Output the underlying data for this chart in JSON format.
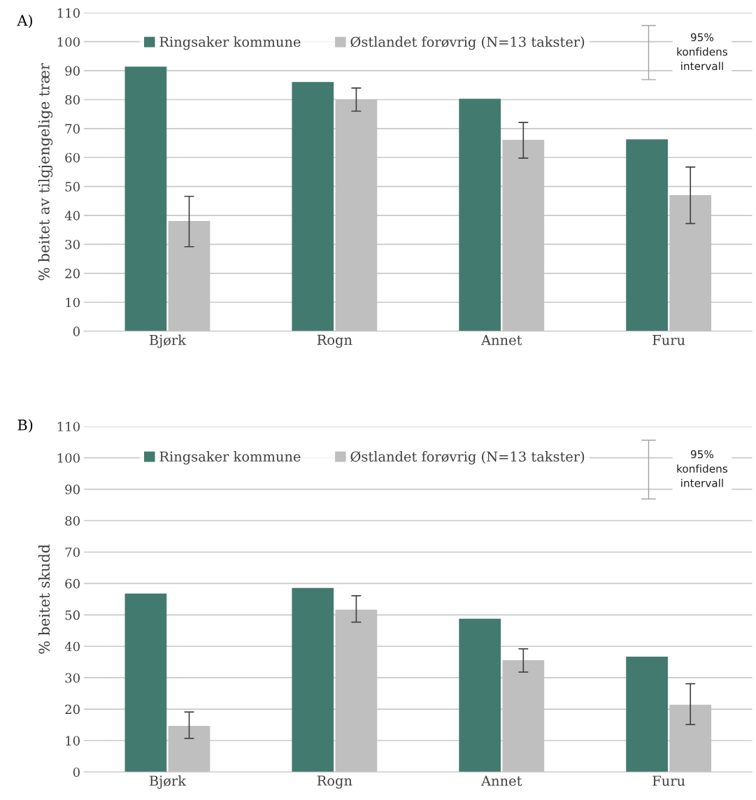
{
  "chart_data": [
    {
      "type": "bar",
      "title": "A)",
      "ylabel": "% beitet av tilgjengelige trær",
      "categories": [
        "Bjørk",
        "Rogn",
        "Annet",
        "Furu"
      ],
      "ylim": [
        0,
        110
      ],
      "yticks": [
        0,
        10,
        20,
        30,
        40,
        50,
        60,
        70,
        80,
        90,
        100,
        110
      ],
      "grid": "y",
      "legend": "top",
      "annotations": [
        "95%\nkonfidens\nintervall"
      ],
      "series": [
        {
          "name": "Ringsaker kommune",
          "color": "#437a6f",
          "values": [
            91.4,
            86.1,
            80.3,
            66.3
          ]
        },
        {
          "name": "Østlandet forøvrig (N=13 takster)",
          "color": "#bfbfbf",
          "values": [
            38.1,
            80.1,
            66.1,
            47.0
          ],
          "errors": [
            [
              29.2,
              46.6
            ],
            [
              76.0,
              84.0
            ],
            [
              59.8,
              72.1
            ],
            [
              37.2,
              56.7
            ]
          ]
        }
      ]
    },
    {
      "type": "bar",
      "title": "B)",
      "ylabel": "% beitet skudd",
      "categories": [
        "Bjørk",
        "Rogn",
        "Annet",
        "Furu"
      ],
      "ylim": [
        0,
        110
      ],
      "yticks": [
        0,
        10,
        20,
        30,
        40,
        50,
        60,
        70,
        80,
        90,
        100,
        110
      ],
      "grid": "y",
      "legend": "top",
      "annotations": [
        "95%\nkonfidens\nintervall"
      ],
      "series": [
        {
          "name": "Ringsaker kommune",
          "color": "#437a6f",
          "values": [
            56.8,
            58.6,
            48.8,
            36.7
          ]
        },
        {
          "name": "Østlandet forøvrig (N=13 takster)",
          "color": "#bfbfbf",
          "values": [
            14.7,
            51.7,
            35.6,
            21.4
          ],
          "errors": [
            [
              10.7,
              19.1
            ],
            [
              47.7,
              56.1
            ],
            [
              31.8,
              39.2
            ],
            [
              15.1,
              28.1
            ]
          ]
        }
      ]
    }
  ]
}
